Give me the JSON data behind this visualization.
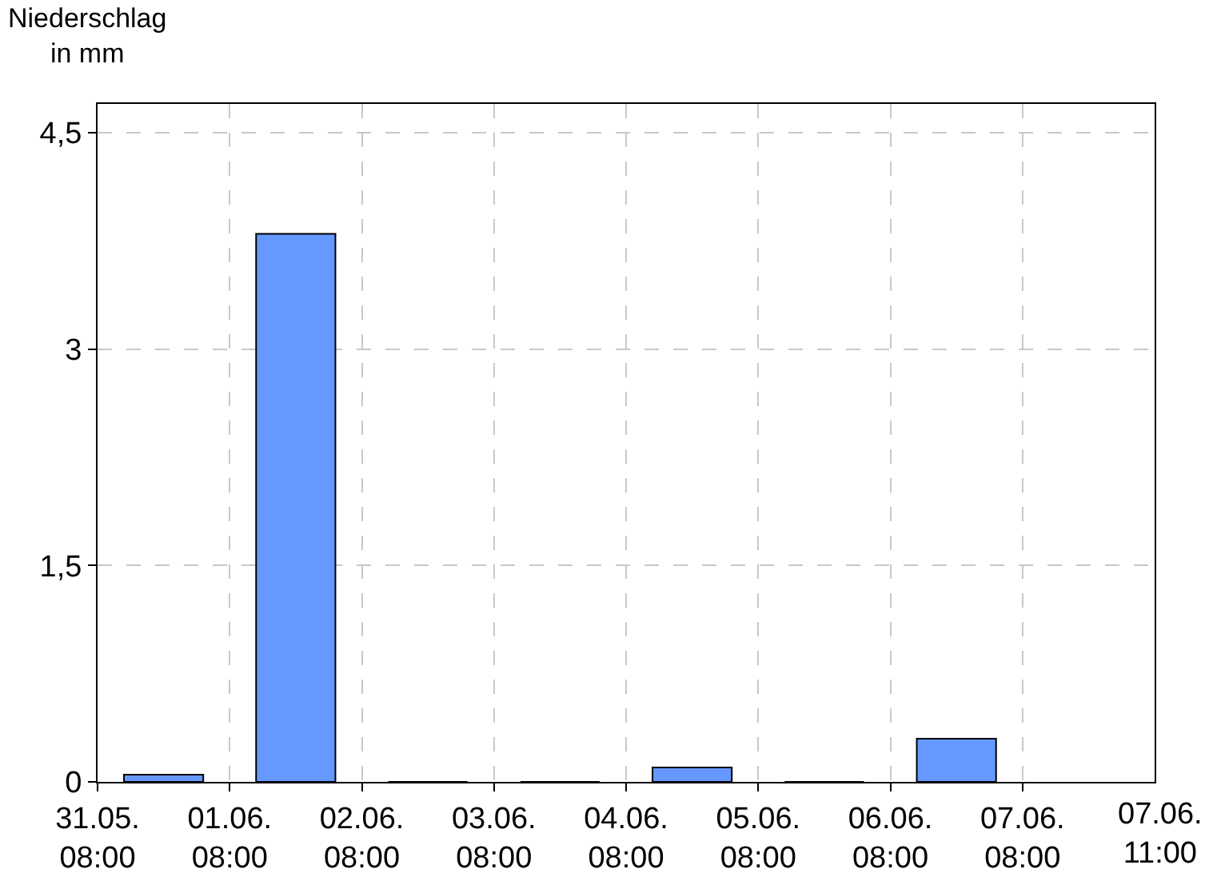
{
  "chart_data": {
    "type": "bar",
    "ylabel": "Niederschlag\nin mm",
    "x": [
      "--05-31T20:00",
      "--06-01T20:00",
      "--06-02T20:00",
      "--06-03T20:00",
      "--06-04T20:00",
      "--06-05T20:00",
      "--06-06T20:00"
    ],
    "values": [
      0.05,
      3.8,
      0,
      0,
      0.1,
      0,
      0.3
    ],
    "color": "#6699ff",
    "xlim": [
      "--05-31T08:00",
      "--06-08T08:00"
    ],
    "xticks": [
      {
        "value": "--05-31T08:00",
        "label": "31.05.\n08:00"
      },
      {
        "value": "--06-01T08:00",
        "label": "01.06.\n08:00"
      },
      {
        "value": "--06-02T08:00",
        "label": "02.06.\n08:00"
      },
      {
        "value": "--06-03T08:00",
        "label": "03.06.\n08:00"
      },
      {
        "value": "--06-04T08:00",
        "label": "04.06.\n08:00"
      },
      {
        "value": "--06-05T08:00",
        "label": "05.06.\n08:00"
      },
      {
        "value": "--06-06T08:00",
        "label": "06.06.\n08:00"
      },
      {
        "value": "--06-07T08:00",
        "label": "07.06.\n08:00"
      }
    ],
    "ylim": [
      0,
      4.7
    ],
    "yticks": [
      0,
      {
        "value": 1.5,
        "label": "1,5"
      },
      3,
      {
        "value": 4.5,
        "label": "4,5"
      }
    ],
    "annotations": [
      "07.06.\n11:00"
    ],
    "grid": true
  }
}
